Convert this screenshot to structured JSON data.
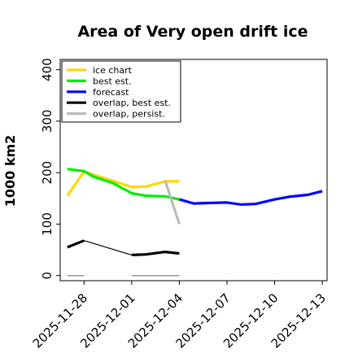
{
  "chart_data": {
    "type": "line",
    "title": "Area of Very open drift ice",
    "xlabel": "",
    "ylabel": "1000 km2",
    "ylim": [
      -10,
      420
    ],
    "xlim": [
      -3,
      53
    ],
    "x_ticks": [
      {
        "x": 2,
        "label": "2025-11-28",
        "color": "#000000"
      },
      {
        "x": 12,
        "label": "2025-12-01",
        "color": "#000000"
      },
      {
        "x": 22,
        "label": "2025-12-04",
        "color": "#2e8b2e"
      },
      {
        "x": 32,
        "label": "2025-12-07",
        "color": "#000000"
      },
      {
        "x": 42,
        "label": "2025-12-10",
        "color": "#000000"
      },
      {
        "x": 52,
        "label": "2025-12-13",
        "color": "#000000"
      }
    ],
    "y_ticks": [
      0,
      100,
      200,
      300,
      400
    ],
    "legend_position": "top-left",
    "series": [
      {
        "name": "ice chart",
        "color": "#ffd700",
        "width": 3.2,
        "x": [
          -1.5,
          2,
          12,
          15,
          19,
          22
        ],
        "y": [
          155,
          202,
          172,
          173,
          183,
          183
        ]
      },
      {
        "name": "best est.",
        "color": "#00ee00",
        "width": 3.2,
        "x": [
          -1.5,
          2,
          4,
          8,
          12,
          15,
          19,
          22
        ],
        "y": [
          207,
          203,
          192,
          180,
          160,
          155,
          154,
          148
        ]
      },
      {
        "name": "forecast",
        "color": "#0000ff",
        "width": 3.2,
        "x": [
          22,
          25,
          28,
          32,
          35,
          38,
          42,
          45,
          49,
          52
        ],
        "y": [
          148,
          140,
          141,
          142,
          138,
          139,
          148,
          153,
          157,
          164
        ]
      },
      {
        "name": "overlap, best est.",
        "color": "#000000",
        "width": 3.2,
        "x": [
          -1.5,
          2
        ],
        "y": [
          55,
          68
        ]
      },
      {
        "name": "overlap, persist.",
        "color": "#bbbbbb",
        "width": 3.2,
        "x": [
          19,
          22
        ],
        "y": [
          185,
          100
        ]
      }
    ],
    "extra_segments": [
      {
        "color": "#000000",
        "width": 1.2,
        "x": [
          2,
          12
        ],
        "y": [
          68,
          40
        ]
      },
      {
        "color": "#000000",
        "width": 3.2,
        "x": [
          12,
          15,
          19,
          22
        ],
        "y": [
          40,
          41,
          46,
          43
        ]
      },
      {
        "color": "#999999",
        "width": 1.5,
        "x": [
          -1.5,
          2
        ],
        "y": [
          0,
          0
        ]
      },
      {
        "color": "#999999",
        "width": 1.5,
        "x": [
          12,
          22
        ],
        "y": [
          0,
          0
        ]
      }
    ]
  }
}
